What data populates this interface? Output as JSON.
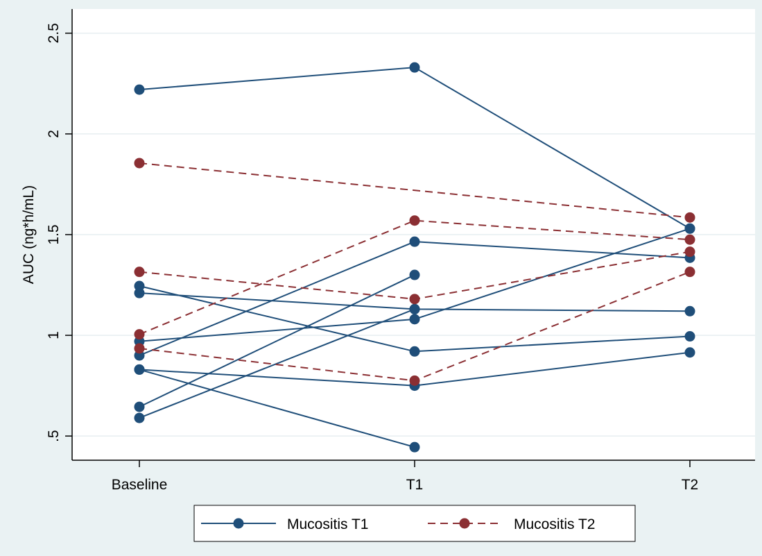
{
  "chart_data": {
    "type": "line",
    "categories": [
      "Baseline",
      "T1",
      "T2"
    ],
    "ylabel": "AUC (ng*h/mL)",
    "ylim": [
      0.38,
      2.62
    ],
    "yticks": [
      {
        "value": 0.5,
        "label": ".5"
      },
      {
        "value": 1,
        "label": "1"
      },
      {
        "value": 1.5,
        "label": "1.5"
      },
      {
        "value": 2,
        "label": "2"
      },
      {
        "value": 2.5,
        "label": "2.5"
      }
    ],
    "grid": true,
    "legend_position": "bottom",
    "legend": [
      {
        "label": "Mucositis T1",
        "color": "#1f4e79",
        "dash": "solid"
      },
      {
        "label": "Mucositis T2",
        "color": "#8b2f33",
        "dash": "dashed"
      }
    ],
    "series": [
      {
        "group": 0,
        "values": [
          2.22,
          2.33,
          1.53
        ]
      },
      {
        "group": 0,
        "values": [
          0.97,
          1.08,
          1.53
        ]
      },
      {
        "group": 0,
        "values": [
          0.9,
          1.465,
          1.385
        ]
      },
      {
        "group": 0,
        "values": [
          0.59,
          1.13,
          null
        ]
      },
      {
        "group": 0,
        "values": [
          1.21,
          1.13,
          1.12
        ]
      },
      {
        "group": 0,
        "values": [
          1.245,
          0.92,
          0.995
        ]
      },
      {
        "group": 0,
        "values": [
          0.83,
          0.75,
          0.915
        ]
      },
      {
        "group": 0,
        "values": [
          0.83,
          0.445,
          null
        ]
      },
      {
        "group": 0,
        "values": [
          0.645,
          1.3,
          null
        ]
      },
      {
        "group": 1,
        "values": [
          1.855,
          null,
          1.585
        ]
      },
      {
        "group": 1,
        "values": [
          1.005,
          1.57,
          1.475
        ]
      },
      {
        "group": 1,
        "values": [
          1.315,
          1.18,
          1.415
        ]
      },
      {
        "group": 1,
        "values": [
          0.935,
          0.775,
          1.315
        ]
      }
    ]
  }
}
